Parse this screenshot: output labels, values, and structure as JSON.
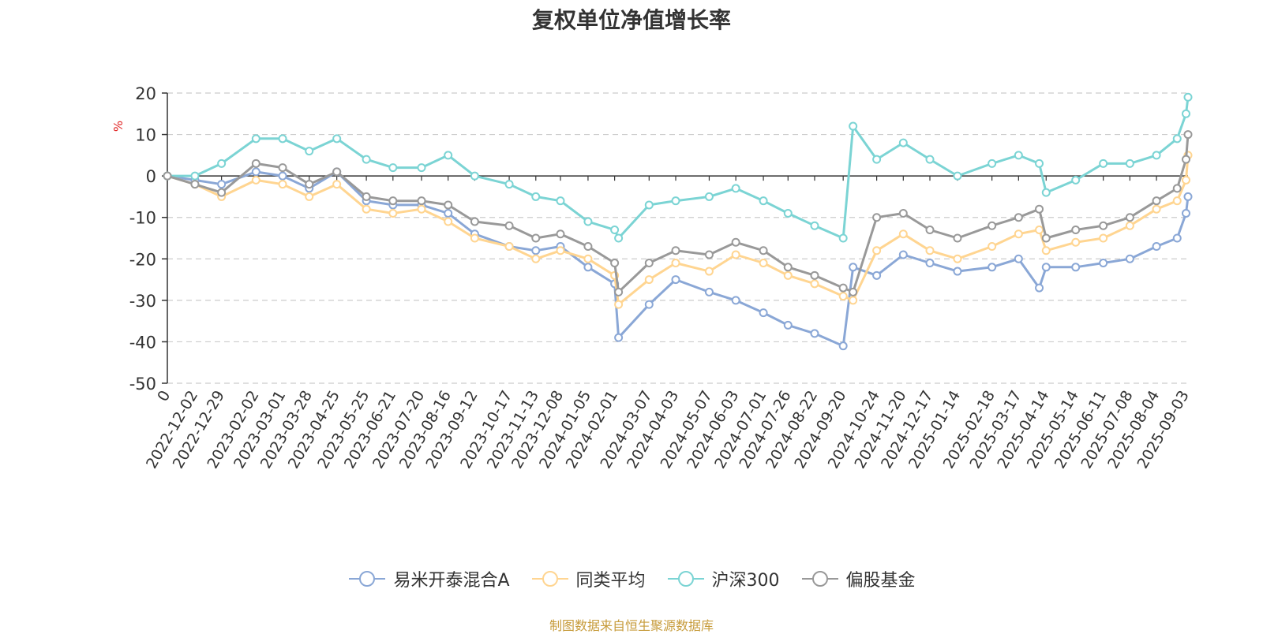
{
  "chart_data": {
    "type": "line",
    "title": "复权单位净值增长率",
    "y_unit": "%",
    "ylim": [
      -50,
      20
    ],
    "yticks": [
      20,
      10,
      0,
      -10,
      -20,
      -30,
      -40,
      -50
    ],
    "grid": true,
    "legend_position": "bottom-center",
    "x_start_label": "0",
    "x_tick_labels": [
      "2022-12-02",
      "2022-12-29",
      "2023-02-02",
      "2023-03-01",
      "2023-03-28",
      "2023-04-25",
      "2023-05-25",
      "2023-06-21",
      "2023-07-20",
      "2023-08-16",
      "2023-09-12",
      "2023-10-17",
      "2023-11-13",
      "2023-12-08",
      "2024-01-05",
      "2024-02-01",
      "2024-03-07",
      "2024-04-03",
      "2024-05-07",
      "2024-06-03",
      "2024-07-01",
      "2024-07-26",
      "2024-08-22",
      "2024-09-20",
      "2024-10-24",
      "2024-11-20",
      "2024-12-17",
      "2025-01-14",
      "2025-02-18",
      "2025-03-17",
      "2025-04-14",
      "2025-05-14",
      "2025-06-11",
      "2025-07-08",
      "2025-08-04",
      "2025-09-03"
    ],
    "x": [
      "2022-11-04",
      "2022-12-02",
      "2022-12-29",
      "2023-02-02",
      "2023-03-01",
      "2023-03-28",
      "2023-04-25",
      "2023-05-25",
      "2023-06-21",
      "2023-07-20",
      "2023-08-16",
      "2023-09-12",
      "2023-10-17",
      "2023-11-13",
      "2023-12-08",
      "2024-01-05",
      "2024-02-01",
      "2024-02-05",
      "2024-03-07",
      "2024-04-03",
      "2024-05-07",
      "2024-06-03",
      "2024-07-01",
      "2024-07-26",
      "2024-08-22",
      "2024-09-20",
      "2024-09-30",
      "2024-10-24",
      "2024-11-20",
      "2024-12-17",
      "2025-01-14",
      "2025-02-18",
      "2025-03-17",
      "2025-04-07",
      "2025-04-14",
      "2025-05-14",
      "2025-06-11",
      "2025-07-08",
      "2025-08-04",
      "2025-08-25",
      "2025-09-03",
      "2025-09-05"
    ],
    "series": [
      {
        "name": "易米开泰混合A",
        "color": "#8aa7d6",
        "values": [
          0,
          -1,
          -2,
          1,
          0,
          -3,
          1,
          -6,
          -7,
          -7,
          -9,
          -14,
          -17,
          -18,
          -17,
          -22,
          -26,
          -39,
          -31,
          -25,
          -28,
          -30,
          -33,
          -36,
          -38,
          -41,
          -22,
          -24,
          -19,
          -21,
          -23,
          -22,
          -20,
          -27,
          -22,
          -22,
          -21,
          -20,
          -17,
          -15,
          -9,
          -5
        ]
      },
      {
        "name": "同类平均",
        "color": "#ffd591",
        "values": [
          0,
          -2,
          -5,
          -1,
          -2,
          -5,
          -2,
          -8,
          -9,
          -8,
          -11,
          -15,
          -17,
          -20,
          -18,
          -20,
          -24,
          -31,
          -25,
          -21,
          -23,
          -19,
          -21,
          -24,
          -26,
          -29,
          -30,
          -18,
          -14,
          -18,
          -20,
          -17,
          -14,
          -13,
          -18,
          -16,
          -15,
          -12,
          -8,
          -6,
          -1,
          5
        ]
      },
      {
        "name": "沪深300",
        "color": "#7bd4d4",
        "values": [
          0,
          0,
          3,
          9,
          9,
          6,
          9,
          4,
          2,
          2,
          5,
          0,
          -2,
          -5,
          -6,
          -11,
          -13,
          -15,
          -7,
          -6,
          -5,
          -3,
          -6,
          -9,
          -12,
          -15,
          12,
          4,
          8,
          4,
          0,
          3,
          5,
          3,
          -4,
          -1,
          3,
          3,
          5,
          9,
          15,
          19
        ]
      },
      {
        "name": "偏股基金",
        "color": "#999999",
        "values": [
          0,
          -2,
          -4,
          3,
          2,
          -2,
          1,
          -5,
          -6,
          -6,
          -7,
          -11,
          -12,
          -15,
          -14,
          -17,
          -21,
          -28,
          -21,
          -18,
          -19,
          -16,
          -18,
          -22,
          -24,
          -27,
          -28,
          -10,
          -9,
          -13,
          -15,
          -12,
          -10,
          -8,
          -15,
          -13,
          -12,
          -10,
          -6,
          -3,
          4,
          10
        ]
      }
    ]
  },
  "source_note": "制图数据来自恒生聚源数据库"
}
